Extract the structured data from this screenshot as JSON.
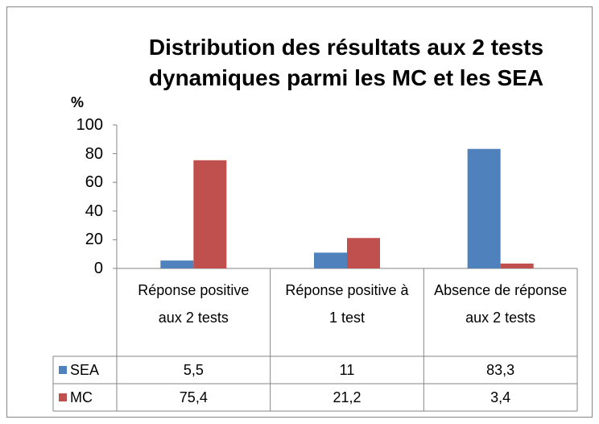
{
  "chart_data": {
    "type": "bar",
    "title": "Distribution des résultats aux 2 tests dynamiques parmi les MC et les SEA",
    "y_label": "%",
    "categories": [
      "Réponse positive aux 2 tests",
      "Réponse positive à 1 test",
      "Absence de réponse aux 2 tests"
    ],
    "series": [
      {
        "name": "SEA",
        "color": "#4f81bd",
        "values": [
          5.5,
          11,
          83.3
        ],
        "value_labels": [
          "5,5",
          "11",
          "83,3"
        ]
      },
      {
        "name": "MC",
        "color": "#c0504d",
        "values": [
          75.4,
          21.2,
          3.4
        ],
        "value_labels": [
          "75,4",
          "21,2",
          "3,4"
        ]
      }
    ],
    "ylim": [
      0,
      100
    ],
    "yticks": [
      0,
      20,
      40,
      60,
      80,
      100
    ],
    "grid": false,
    "data_table": true
  }
}
